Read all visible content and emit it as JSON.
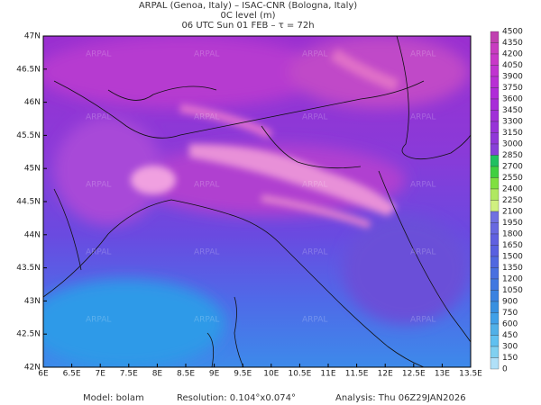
{
  "header": {
    "line1": "ARPAL (Genoa, Italy)  –  ISAC-CNR (Bologna, Italy)",
    "line2": "0C level (m)",
    "line3": "06 UTC Sun 01 FEB  –  τ = 72h"
  },
  "map": {
    "lat_labels": [
      "47N",
      "46.5N",
      "46N",
      "45.5N",
      "45N",
      "44.5N",
      "44N",
      "43.5N",
      "43N",
      "42.5N",
      "42N"
    ],
    "lon_labels": [
      "6E",
      "6.5E",
      "7E",
      "7.5E",
      "8E",
      "8.5E",
      "9E",
      "9.5E",
      "10E",
      "10.5E",
      "11E",
      "11.5E",
      "12E",
      "12.5E",
      "13E",
      "13.5E"
    ],
    "watermark": "ARPAL"
  },
  "colorbar": {
    "labels": [
      4500,
      4350,
      4200,
      4050,
      3900,
      3750,
      3600,
      3450,
      3300,
      3150,
      3000,
      2850,
      2700,
      2550,
      2400,
      2250,
      2100,
      1950,
      1800,
      1650,
      1500,
      1350,
      1200,
      1050,
      900,
      750,
      600,
      450,
      300,
      150,
      0
    ]
  },
  "footer": {
    "model": "Model: bolam",
    "resolution": "Resolution: 0.104°x0.074°",
    "analysis": "Analysis: Thu 06Z29JAN2026"
  }
}
